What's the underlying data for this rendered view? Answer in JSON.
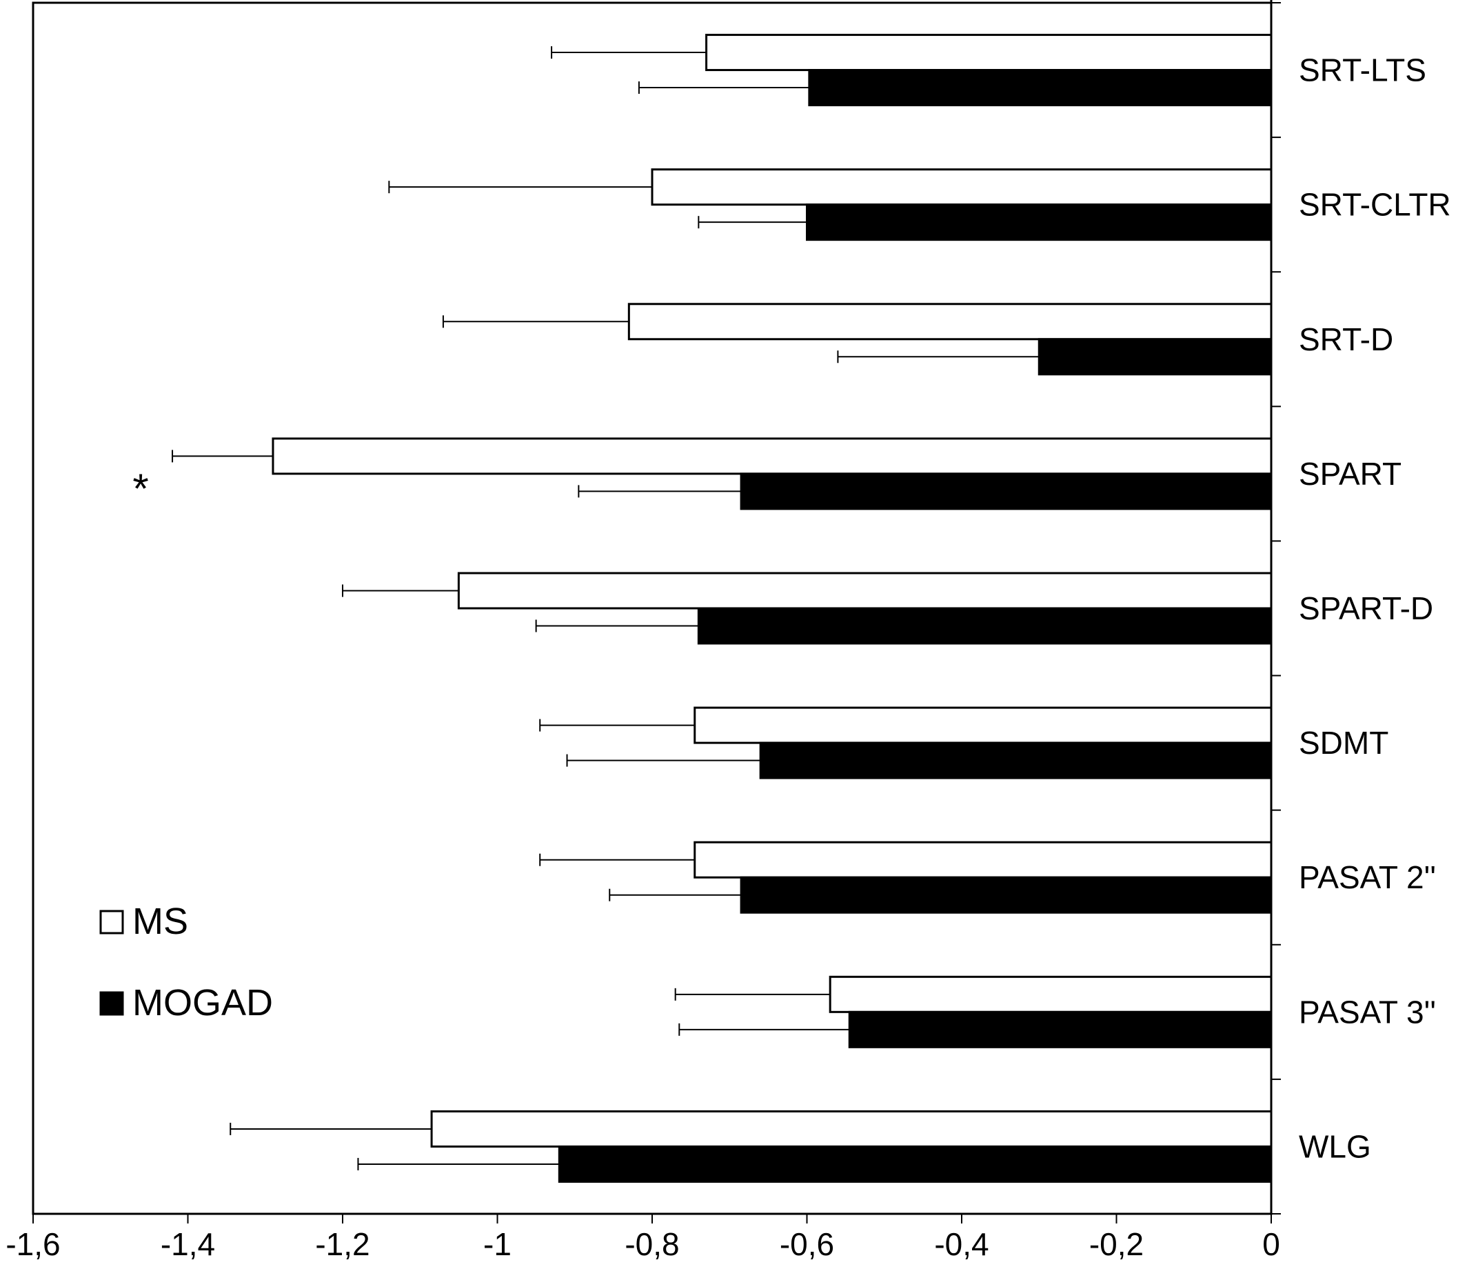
{
  "chart_data": {
    "type": "bar",
    "orientation": "horizontal",
    "categories": [
      "SRT-LTS",
      "SRT-CLTR",
      "SRT-D",
      "SPART",
      "SPART-D",
      "SDMT",
      "PASAT 2''",
      "PASAT 3''",
      "WLG"
    ],
    "series": [
      {
        "name": "MS",
        "color": "#ffffff",
        "values": [
          -0.73,
          -0.8,
          -0.83,
          -1.29,
          -1.05,
          -0.745,
          -0.745,
          -0.57,
          -1.085
        ],
        "error": [
          0.2,
          0.34,
          0.24,
          0.13,
          0.15,
          0.2,
          0.2,
          0.2,
          0.26
        ]
      },
      {
        "name": "MOGAD",
        "color": "#000000",
        "values": [
          -0.597,
          -0.6,
          -0.3,
          -0.685,
          -0.74,
          -0.66,
          -0.685,
          -0.545,
          -0.92
        ],
        "error": [
          0.22,
          0.14,
          0.26,
          0.21,
          0.21,
          0.25,
          0.17,
          0.22,
          0.26
        ]
      }
    ],
    "xlim": [
      -1.6,
      0
    ],
    "xticks": [
      "-1,6",
      "-1,4",
      "-1,2",
      "-1",
      "-0,8",
      "-0,6",
      "-0,4",
      "-0,2",
      "0"
    ],
    "xtick_values": [
      -1.6,
      -1.4,
      -1.2,
      -1.0,
      -0.8,
      -0.6,
      -0.4,
      -0.2,
      0
    ],
    "annotations": [
      {
        "category": "SPART",
        "text": "*"
      }
    ],
    "legend": {
      "placement": "bottom-left",
      "entries": [
        "MS",
        "MOGAD"
      ]
    },
    "title": "",
    "xlabel": "",
    "ylabel": "",
    "grid": false
  }
}
